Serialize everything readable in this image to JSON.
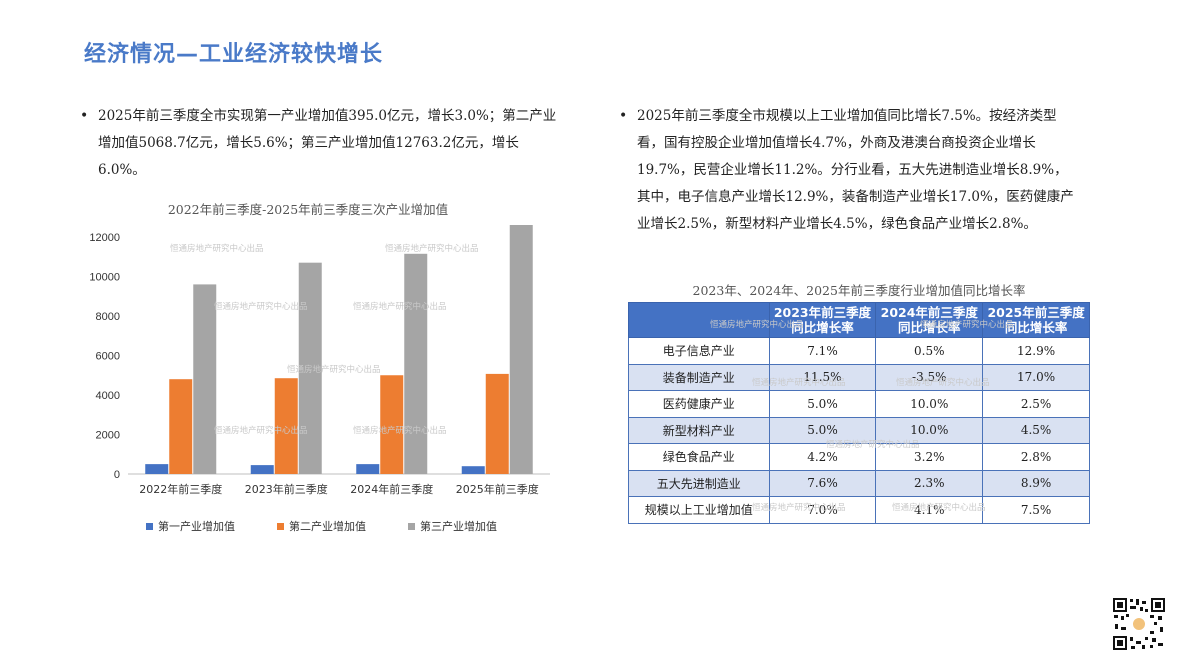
{
  "page": {
    "title": "经济情况—工业经济较快增长",
    "watermark_text": "恒通房地产研究中心出品"
  },
  "left_text": "2025年前三季度全市实现第一产业增加值395.0亿元，增长3.0%；第二产业增加值5068.7亿元，增长5.6%；第三产业增加值12763.2亿元，增长6.0%。",
  "right_text": "2025年前三季度全市规模以上工业增加值同比增长7.5%。按经济类型看，国有控股企业增加值增长4.7%，外商及港澳台商投资企业增长19.7%，民营企业增长11.2%。分行业看，五大先进制造业增长8.9%，其中，电子信息产业增长12.9%，装备制造产业增长17.0%，医药健康产业增长2.5%，新型材料产业增长4.5%，绿色食品产业增长2.8%。",
  "bullet_glyph": "•",
  "chart_data": {
    "type": "bar",
    "title": "2022年前三季度-2025年前三季度三次产业增加值",
    "categories": [
      "2022年前三季度",
      "2023年前三季度",
      "2024年前三季度",
      "2025年前三季度"
    ],
    "series": [
      {
        "name": "第一产业增加值",
        "color": "#4472c4",
        "values": [
          500,
          450,
          500,
          395.0
        ]
      },
      {
        "name": "第二产业增加值",
        "color": "#ed7d31",
        "values": [
          4800,
          4850,
          5000,
          5068.7
        ]
      },
      {
        "name": "第三产业增加值",
        "color": "#a5a5a5",
        "values": [
          9600,
          10700,
          11150,
          12763.2
        ]
      }
    ],
    "ylim": [
      0,
      12000
    ],
    "yticks": [
      0,
      2000,
      4000,
      6000,
      8000,
      10000,
      12000
    ],
    "legend_position": "bottom",
    "grid": false
  },
  "table": {
    "title": "2023年、2024年、2025年前三季度行业增加值同比增长率",
    "headers": [
      "",
      "2023年前三季度同比增长率",
      "2024年前三季度同比增长率",
      "2025年前三季度同比增长率"
    ],
    "rows": [
      [
        "电子信息产业",
        "7.1%",
        "0.5%",
        "12.9%"
      ],
      [
        "装备制造产业",
        "11.5%",
        "-3.5%",
        "17.0%"
      ],
      [
        "医药健康产业",
        "5.0%",
        "10.0%",
        "2.5%"
      ],
      [
        "新型材料产业",
        "5.0%",
        "10.0%",
        "4.5%"
      ],
      [
        "绿色食品产业",
        "4.2%",
        "3.2%",
        "2.8%"
      ],
      [
        "五大先进制造业",
        "7.6%",
        "2.3%",
        "8.9%"
      ],
      [
        "规模以上工业增加值",
        "7.0%",
        "4.1%",
        "7.5%"
      ]
    ]
  },
  "qr_code": {
    "icon": "qr-code-icon"
  }
}
